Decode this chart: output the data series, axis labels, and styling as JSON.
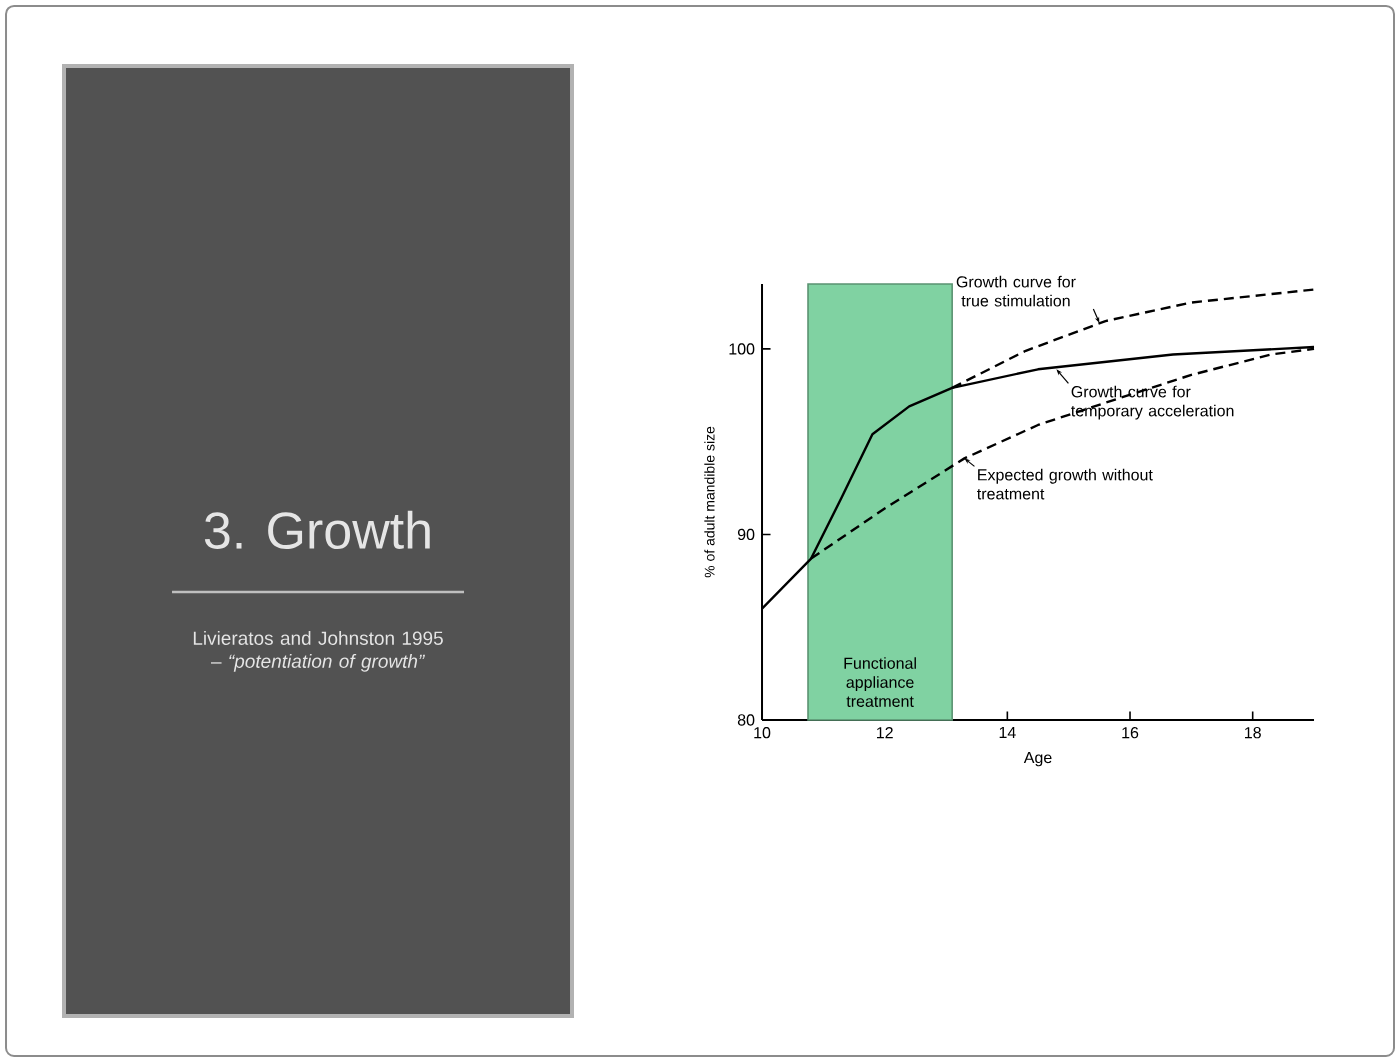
{
  "chart_data": {
    "type": "line",
    "title": "3. Growth",
    "subtitle": "Livieratos and Johnston 1995 – *“potentiation of growth”*",
    "xlabel": "Age",
    "ylabel": "% of adult mandible size",
    "xlim": [
      10,
      19
    ],
    "ylim": [
      80,
      103.5
    ],
    "xticks": [
      10,
      12,
      14,
      16,
      18
    ],
    "yticks": [
      80,
      90,
      100
    ],
    "series": [
      {
        "color": "#000000",
        "line_style": "solid",
        "x": [
          10,
          10.8,
          11.3,
          11.8,
          12.4,
          13.1,
          14.5,
          16.7,
          19
        ],
        "values": [
          86,
          88.7,
          92,
          95.4,
          96.9,
          97.9,
          98.9,
          99.7,
          100.1
        ]
      },
      {
        "color": "#000000",
        "line_style": "dashed",
        "x": [
          13.1,
          14.3,
          15.6,
          17,
          19
        ],
        "values": [
          97.9,
          99.9,
          101.5,
          102.5,
          103.2
        ]
      },
      {
        "color": "#000000",
        "line_style": "dashed",
        "x": [
          10.8,
          12,
          13.3,
          14.5,
          15.6,
          17,
          18.3,
          19
        ],
        "values": [
          88.7,
          91.4,
          94.1,
          95.9,
          97.1,
          98.6,
          99.7,
          100
        ]
      }
    ],
    "bands": [
      {
        "axis": "x",
        "from": 10.75,
        "to": 13.1,
        "label": "Functional appliance treatment",
        "color": "#80d2a2"
      }
    ],
    "annotations": [
      {
        "text": "Growth curve for true stimulation",
        "x": 15.5,
        "y": 101.4
      },
      {
        "text": "Growth curve for temporary acceleration",
        "x": 14.8,
        "y": 98.9
      },
      {
        "text": "Expected growth without treatment",
        "x": 13.3,
        "y": 94.1
      }
    ]
  }
}
